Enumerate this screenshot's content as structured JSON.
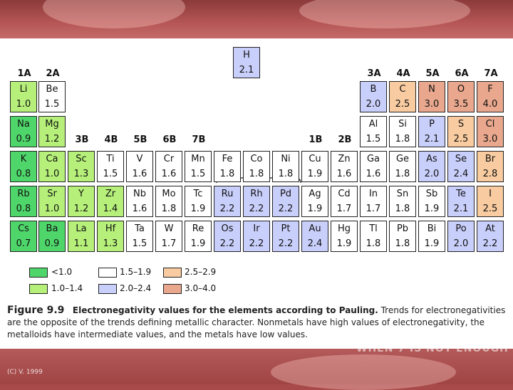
{
  "group_headers": [
    "1A",
    "2A",
    "3B",
    "4B",
    "5B",
    "6B",
    "7B",
    "8B",
    "1B",
    "2B",
    "3A",
    "4A",
    "5A",
    "6A",
    "7A"
  ],
  "elements": [
    {
      "sym": "H",
      "val": "2.1",
      "cls": "c3"
    },
    {
      "sym": "Li",
      "val": "1.0",
      "cls": "c1"
    },
    {
      "sym": "Be",
      "val": "1.5",
      "cls": "c2"
    },
    {
      "sym": "B",
      "val": "2.0",
      "cls": "c3"
    },
    {
      "sym": "C",
      "val": "2.5",
      "cls": "c4"
    },
    {
      "sym": "N",
      "val": "3.0",
      "cls": "c5"
    },
    {
      "sym": "O",
      "val": "3.5",
      "cls": "c5"
    },
    {
      "sym": "F",
      "val": "4.0",
      "cls": "c5"
    },
    {
      "sym": "Na",
      "val": "0.9",
      "cls": "c0"
    },
    {
      "sym": "Mg",
      "val": "1.2",
      "cls": "c1"
    },
    {
      "sym": "Al",
      "val": "1.5",
      "cls": "c2"
    },
    {
      "sym": "Si",
      "val": "1.8",
      "cls": "c2"
    },
    {
      "sym": "P",
      "val": "2.1",
      "cls": "c3"
    },
    {
      "sym": "S",
      "val": "2.5",
      "cls": "c4"
    },
    {
      "sym": "Cl",
      "val": "3.0",
      "cls": "c5"
    },
    {
      "sym": "K",
      "val": "0.8",
      "cls": "c0"
    },
    {
      "sym": "Ca",
      "val": "1.0",
      "cls": "c1"
    },
    {
      "sym": "Sc",
      "val": "1.3",
      "cls": "c1"
    },
    {
      "sym": "Ti",
      "val": "1.5",
      "cls": "c2"
    },
    {
      "sym": "V",
      "val": "1.6",
      "cls": "c2"
    },
    {
      "sym": "Cr",
      "val": "1.6",
      "cls": "c2"
    },
    {
      "sym": "Mn",
      "val": "1.5",
      "cls": "c2"
    },
    {
      "sym": "Fe",
      "val": "1.8",
      "cls": "c2"
    },
    {
      "sym": "Co",
      "val": "1.8",
      "cls": "c2"
    },
    {
      "sym": "Ni",
      "val": "1.8",
      "cls": "c2"
    },
    {
      "sym": "Cu",
      "val": "1.9",
      "cls": "c2"
    },
    {
      "sym": "Zn",
      "val": "1.6",
      "cls": "c2"
    },
    {
      "sym": "Ga",
      "val": "1.6",
      "cls": "c2"
    },
    {
      "sym": "Ge",
      "val": "1.8",
      "cls": "c2"
    },
    {
      "sym": "As",
      "val": "2.0",
      "cls": "c3"
    },
    {
      "sym": "Se",
      "val": "2.4",
      "cls": "c3"
    },
    {
      "sym": "Br",
      "val": "2.8",
      "cls": "c4"
    },
    {
      "sym": "Rb",
      "val": "0.8",
      "cls": "c0"
    },
    {
      "sym": "Sr",
      "val": "1.0",
      "cls": "c1"
    },
    {
      "sym": "Y",
      "val": "1.2",
      "cls": "c1"
    },
    {
      "sym": "Zr",
      "val": "1.4",
      "cls": "c1"
    },
    {
      "sym": "Nb",
      "val": "1.6",
      "cls": "c2"
    },
    {
      "sym": "Mo",
      "val": "1.8",
      "cls": "c2"
    },
    {
      "sym": "Tc",
      "val": "1.9",
      "cls": "c2"
    },
    {
      "sym": "Ru",
      "val": "2.2",
      "cls": "c3"
    },
    {
      "sym": "Rh",
      "val": "2.2",
      "cls": "c3"
    },
    {
      "sym": "Pd",
      "val": "2.2",
      "cls": "c3"
    },
    {
      "sym": "Ag",
      "val": "1.9",
      "cls": "c2"
    },
    {
      "sym": "Cd",
      "val": "1.7",
      "cls": "c2"
    },
    {
      "sym": "In",
      "val": "1.7",
      "cls": "c2"
    },
    {
      "sym": "Sn",
      "val": "1.8",
      "cls": "c2"
    },
    {
      "sym": "Sb",
      "val": "1.9",
      "cls": "c2"
    },
    {
      "sym": "Te",
      "val": "2.1",
      "cls": "c3"
    },
    {
      "sym": "I",
      "val": "2.5",
      "cls": "c4"
    },
    {
      "sym": "Cs",
      "val": "0.7",
      "cls": "c0"
    },
    {
      "sym": "Ba",
      "val": "0.9",
      "cls": "c0"
    },
    {
      "sym": "La",
      "val": "1.1",
      "cls": "c1"
    },
    {
      "sym": "Hf",
      "val": "1.3",
      "cls": "c1"
    },
    {
      "sym": "Ta",
      "val": "1.5",
      "cls": "c2"
    },
    {
      "sym": "W",
      "val": "1.7",
      "cls": "c2"
    },
    {
      "sym": "Re",
      "val": "1.9",
      "cls": "c2"
    },
    {
      "sym": "Os",
      "val": "2.2",
      "cls": "c3"
    },
    {
      "sym": "Ir",
      "val": "2.2",
      "cls": "c3"
    },
    {
      "sym": "Pt",
      "val": "2.2",
      "cls": "c3"
    },
    {
      "sym": "Au",
      "val": "2.4",
      "cls": "c3"
    },
    {
      "sym": "Hg",
      "val": "1.9",
      "cls": "c2"
    },
    {
      "sym": "Tl",
      "val": "1.8",
      "cls": "c2"
    },
    {
      "sym": "Pb",
      "val": "1.8",
      "cls": "c2"
    },
    {
      "sym": "Bi",
      "val": "1.9",
      "cls": "c2"
    },
    {
      "sym": "Po",
      "val": "2.0",
      "cls": "c3"
    },
    {
      "sym": "At",
      "val": "2.2",
      "cls": "c3"
    }
  ],
  "legend": [
    {
      "label": "<1.0",
      "color": "#4fd66b"
    },
    {
      "label": "1.0–1.4",
      "color": "#b6f07a"
    },
    {
      "label": "1.5–1.9",
      "color": "#ffffff"
    },
    {
      "label": "2.0–2.4",
      "color": "#c9cffb"
    },
    {
      "label": "2.5–2.9",
      "color": "#f8cba0"
    },
    {
      "label": "3.0–4.0",
      "color": "#e9a88e"
    }
  ],
  "caption": {
    "figure": "Figure 9.9",
    "bold_text": "Electronegativity values for the elements according to Pauling.",
    "text": "Trends for electronegativities are the opposite of the trends defining metallic character. Nonmetals have high values of electronegativity, the metalloids have intermediate values, and the metals have low values."
  },
  "footer": {
    "copyright": "(C) V. 1999",
    "ghost_text": "WHEN 7 IS NOT ENOUGH"
  }
}
